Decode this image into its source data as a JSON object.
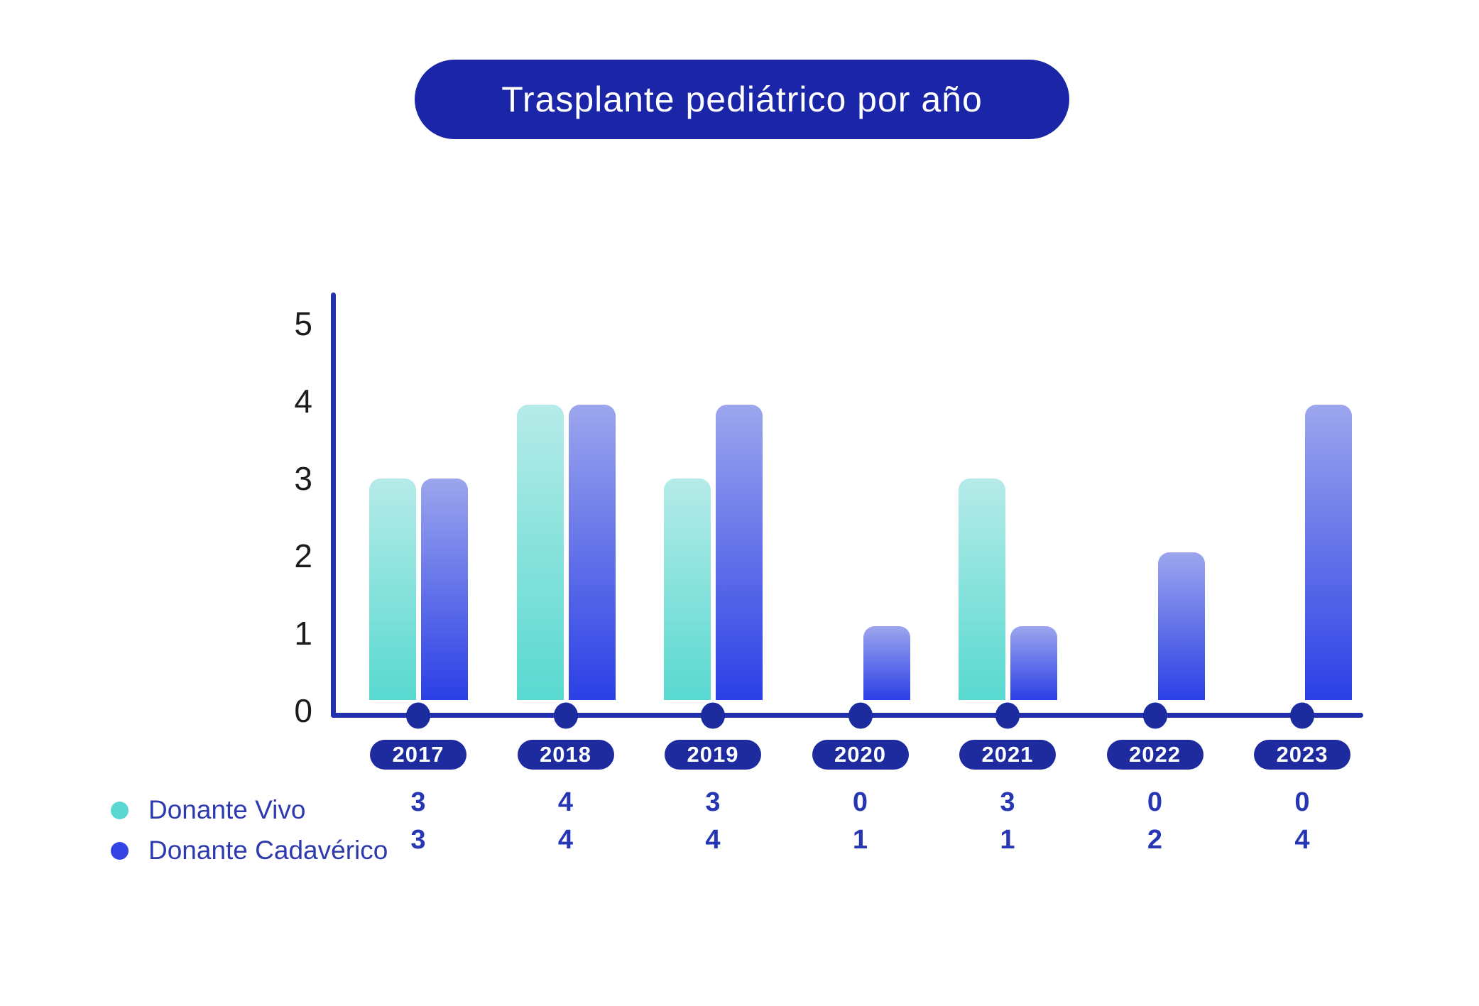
{
  "title": "Trasplante pediátrico por año",
  "chart_data": {
    "type": "bar",
    "title": "Trasplante pediátrico por año",
    "categories": [
      "2017",
      "2018",
      "2019",
      "2020",
      "2021",
      "2022",
      "2023"
    ],
    "series": [
      {
        "name": "Donante Vivo",
        "values": [
          3,
          4,
          3,
          0,
          3,
          0,
          0
        ],
        "gradient_top": "#b6ebe8",
        "gradient_bottom": "#58d9d0"
      },
      {
        "name": "Donante Cadavérico",
        "values": [
          3,
          4,
          4,
          1,
          1,
          2,
          4
        ],
        "gradient_top": "#9ca6ed",
        "gradient_bottom": "#2b3fe6"
      }
    ],
    "y_ticks": [
      0,
      1,
      2,
      3,
      4,
      5
    ],
    "ylim": [
      0,
      5
    ],
    "grid": false,
    "legend_position": "bottom-left",
    "value_rows_shown_below_axis": true
  },
  "legend": {
    "items": [
      {
        "label": "Donante Vivo",
        "color": "#5ad7d0"
      },
      {
        "label": "Donante Cadavérico",
        "color": "#3443e3"
      }
    ]
  },
  "colors": {
    "title_pill": "#1b25a8",
    "title_text": "#ffffff",
    "axis": "#2331ae",
    "axis_dot": "#1c2b9e",
    "year_pill": "#1e2b9f",
    "year_pill_text": "#ffffff",
    "value_text": "#2737b4",
    "legend_text": "#2e39ad",
    "y_tick_text": "#1c1c1c",
    "background": "#ffffff"
  }
}
